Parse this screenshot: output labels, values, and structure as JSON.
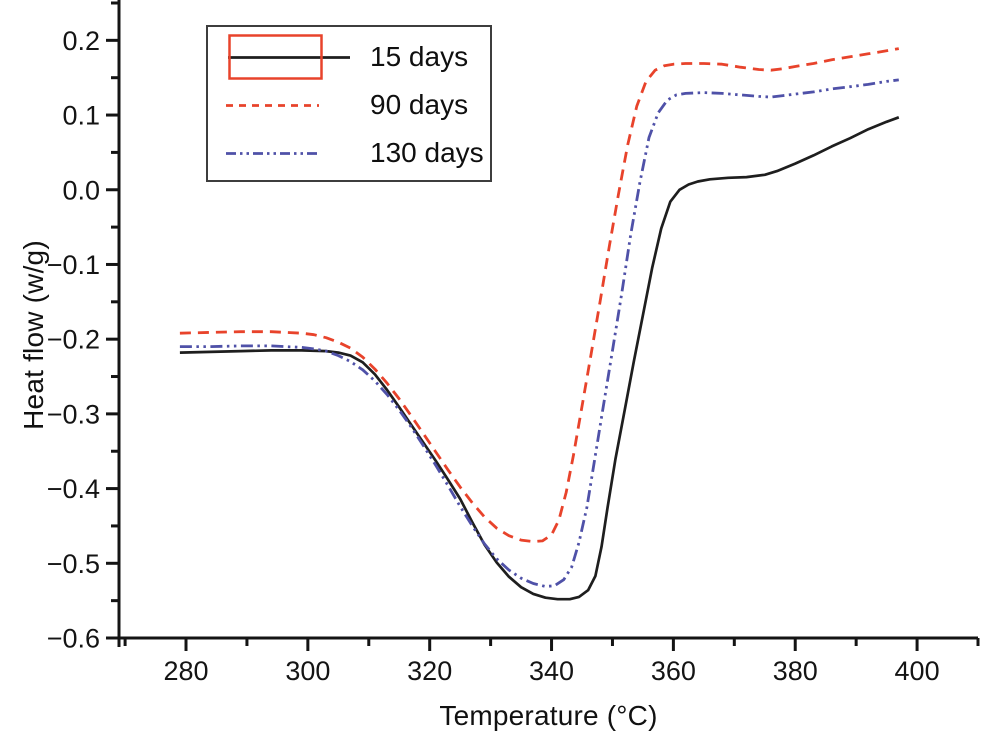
{
  "chart_data": {
    "type": "line",
    "title": "",
    "xlabel": "Temperature (°C)",
    "ylabel": "Heat flow (w/g)",
    "xlim": [
      269,
      410
    ],
    "ylim": [
      -0.6,
      0.254
    ],
    "x_major_ticks": [
      280,
      300,
      320,
      340,
      360,
      380,
      400
    ],
    "x_minor_ticks": [
      270,
      290,
      310,
      330,
      350,
      370,
      390,
      410
    ],
    "y_major_ticks": [
      0.2,
      0.1,
      0.0,
      -0.1,
      -0.2,
      -0.3,
      -0.4,
      -0.5,
      -0.6
    ],
    "y_minor_ticks": [
      0.25,
      0.15,
      0.05,
      -0.05,
      -0.15,
      -0.25,
      -0.35,
      -0.45,
      -0.55
    ],
    "grid": false,
    "legend_position": "upper-left",
    "colors": {
      "axis": "#141414",
      "tick_label": "#141414"
    },
    "series": [
      {
        "id": "15-days",
        "name": "15 days",
        "color": "#1e1e1e",
        "line_style": "solid",
        "width": 2.7,
        "box_color": "#e8432b",
        "points": [
          [
            279,
            -0.218
          ],
          [
            284,
            -0.217
          ],
          [
            289,
            -0.216
          ],
          [
            294,
            -0.215
          ],
          [
            299,
            -0.215
          ],
          [
            303,
            -0.216
          ],
          [
            305,
            -0.218
          ],
          [
            307,
            -0.222
          ],
          [
            309,
            -0.231
          ],
          [
            311,
            -0.247
          ],
          [
            313,
            -0.268
          ],
          [
            315,
            -0.291
          ],
          [
            317,
            -0.315
          ],
          [
            319,
            -0.339
          ],
          [
            321,
            -0.363
          ],
          [
            323,
            -0.388
          ],
          [
            325,
            -0.414
          ],
          [
            327,
            -0.445
          ],
          [
            329,
            -0.475
          ],
          [
            331,
            -0.499
          ],
          [
            333,
            -0.518
          ],
          [
            335,
            -0.532
          ],
          [
            337,
            -0.541
          ],
          [
            339,
            -0.546
          ],
          [
            341,
            -0.548
          ],
          [
            343,
            -0.548
          ],
          [
            344.5,
            -0.545
          ],
          [
            346,
            -0.536
          ],
          [
            347.2,
            -0.517
          ],
          [
            348.2,
            -0.478
          ],
          [
            349.2,
            -0.425
          ],
          [
            350.5,
            -0.36
          ],
          [
            352,
            -0.295
          ],
          [
            353.5,
            -0.23
          ],
          [
            355,
            -0.168
          ],
          [
            356.5,
            -0.105
          ],
          [
            358,
            -0.052
          ],
          [
            359.5,
            -0.016
          ],
          [
            361,
            0.0
          ],
          [
            362.5,
            0.007
          ],
          [
            364,
            0.011
          ],
          [
            366,
            0.014
          ],
          [
            369,
            0.016
          ],
          [
            372,
            0.017
          ],
          [
            375,
            0.02
          ],
          [
            377,
            0.025
          ],
          [
            380,
            0.035
          ],
          [
            383,
            0.046
          ],
          [
            386,
            0.058
          ],
          [
            389,
            0.069
          ],
          [
            392,
            0.081
          ],
          [
            395,
            0.091
          ],
          [
            397,
            0.097
          ]
        ]
      },
      {
        "id": "90-days",
        "name": "90 days",
        "color": "#e8432b",
        "line_style": "dashed",
        "dash": "11,7",
        "legend_dash": "7,6",
        "width": 2.8,
        "points": [
          [
            279,
            -0.192
          ],
          [
            284,
            -0.191
          ],
          [
            289,
            -0.19
          ],
          [
            294,
            -0.19
          ],
          [
            299,
            -0.192
          ],
          [
            301,
            -0.194
          ],
          [
            303,
            -0.198
          ],
          [
            305,
            -0.204
          ],
          [
            307,
            -0.212
          ],
          [
            309,
            -0.224
          ],
          [
            311,
            -0.24
          ],
          [
            313,
            -0.259
          ],
          [
            315,
            -0.28
          ],
          [
            317,
            -0.303
          ],
          [
            319,
            -0.327
          ],
          [
            321,
            -0.351
          ],
          [
            323,
            -0.375
          ],
          [
            325,
            -0.398
          ],
          [
            327,
            -0.419
          ],
          [
            329,
            -0.438
          ],
          [
            331,
            -0.453
          ],
          [
            333,
            -0.463
          ],
          [
            335,
            -0.469
          ],
          [
            337,
            -0.471
          ],
          [
            338.5,
            -0.47
          ],
          [
            340,
            -0.462
          ],
          [
            341.2,
            -0.442
          ],
          [
            342.4,
            -0.405
          ],
          [
            343.6,
            -0.355
          ],
          [
            345,
            -0.29
          ],
          [
            346.5,
            -0.22
          ],
          [
            348,
            -0.148
          ],
          [
            349.5,
            -0.075
          ],
          [
            351,
            -0.005
          ],
          [
            352.5,
            0.06
          ],
          [
            354,
            0.112
          ],
          [
            355.5,
            0.145
          ],
          [
            357,
            0.16
          ],
          [
            358.5,
            0.166
          ],
          [
            360,
            0.168
          ],
          [
            362,
            0.169
          ],
          [
            365,
            0.169
          ],
          [
            368,
            0.168
          ],
          [
            371,
            0.164
          ],
          [
            374,
            0.161
          ],
          [
            376,
            0.16
          ],
          [
            378,
            0.162
          ],
          [
            380,
            0.165
          ],
          [
            383,
            0.169
          ],
          [
            386,
            0.174
          ],
          [
            389,
            0.178
          ],
          [
            392,
            0.182
          ],
          [
            395,
            0.186
          ],
          [
            397,
            0.189
          ]
        ]
      },
      {
        "id": "130-days",
        "name": "130 days",
        "color": "#4f51a8",
        "line_style": "dash-dot-dot",
        "dash": "12,4.5,2.5,4.5,2.5,4.5",
        "legend_dash": "10,4,2.5,4,2.5,4",
        "width": 2.8,
        "points": [
          [
            279,
            -0.21
          ],
          [
            284,
            -0.21
          ],
          [
            289,
            -0.209
          ],
          [
            294,
            -0.209
          ],
          [
            299,
            -0.211
          ],
          [
            301,
            -0.213
          ],
          [
            303,
            -0.216
          ],
          [
            305,
            -0.222
          ],
          [
            307,
            -0.23
          ],
          [
            309,
            -0.241
          ],
          [
            311,
            -0.256
          ],
          [
            313,
            -0.274
          ],
          [
            315,
            -0.295
          ],
          [
            317,
            -0.318
          ],
          [
            319,
            -0.343
          ],
          [
            321,
            -0.369
          ],
          [
            323,
            -0.396
          ],
          [
            325,
            -0.424
          ],
          [
            327,
            -0.45
          ],
          [
            329,
            -0.474
          ],
          [
            331,
            -0.494
          ],
          [
            333,
            -0.509
          ],
          [
            335,
            -0.52
          ],
          [
            337,
            -0.527
          ],
          [
            339,
            -0.531
          ],
          [
            340.5,
            -0.53
          ],
          [
            342,
            -0.522
          ],
          [
            343.3,
            -0.505
          ],
          [
            344.5,
            -0.472
          ],
          [
            345.8,
            -0.425
          ],
          [
            347,
            -0.365
          ],
          [
            348.5,
            -0.29
          ],
          [
            350,
            -0.215
          ],
          [
            351.5,
            -0.14
          ],
          [
            353,
            -0.06
          ],
          [
            354.5,
            0.01
          ],
          [
            356,
            0.07
          ],
          [
            357.5,
            0.103
          ],
          [
            359,
            0.12
          ],
          [
            360.5,
            0.127
          ],
          [
            362,
            0.129
          ],
          [
            365,
            0.13
          ],
          [
            368,
            0.129
          ],
          [
            371,
            0.127
          ],
          [
            374,
            0.125
          ],
          [
            376,
            0.124
          ],
          [
            378,
            0.126
          ],
          [
            380,
            0.128
          ],
          [
            383,
            0.131
          ],
          [
            386,
            0.135
          ],
          [
            389,
            0.138
          ],
          [
            392,
            0.141
          ],
          [
            395,
            0.145
          ],
          [
            397,
            0.147
          ]
        ]
      }
    ]
  }
}
